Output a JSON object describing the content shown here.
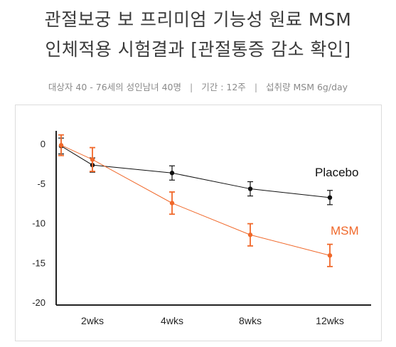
{
  "header": {
    "title_line1": "관절보궁 보 프리미엄 기능성 원료 MSM",
    "title_line2": "인체적용 시험결과 [관절통증 감소 확인]",
    "subtitle": {
      "subjects": "대상자 40 - 76세의 성인남녀 40명",
      "period": "기간 : 12주",
      "intake": "섭취량 MSM 6g/day",
      "separator": "|"
    }
  },
  "colors": {
    "placebo": "#111111",
    "msm": "#f0682a",
    "axis": "#222222",
    "frame": "#dcdcdc"
  },
  "chart_data": {
    "type": "line",
    "categories": [
      "",
      "2wks",
      "4wks",
      "8wks",
      "12wks"
    ],
    "y_ticks": [
      "0",
      "-5",
      "-10",
      "-15",
      "-20"
    ],
    "ylim": [
      -20,
      0
    ],
    "grid": false,
    "series": [
      {
        "name": "Placebo",
        "values": [
          -0.3,
          -2.7,
          -3.7,
          -5.7,
          -6.8
        ],
        "errors": [
          1.0,
          0.9,
          0.9,
          0.9,
          0.9
        ]
      },
      {
        "name": "MSM",
        "values": [
          -0.2,
          -2.0,
          -7.5,
          -11.5,
          -14.1
        ],
        "errors": [
          1.3,
          1.5,
          1.4,
          1.4,
          1.4
        ]
      }
    ]
  }
}
